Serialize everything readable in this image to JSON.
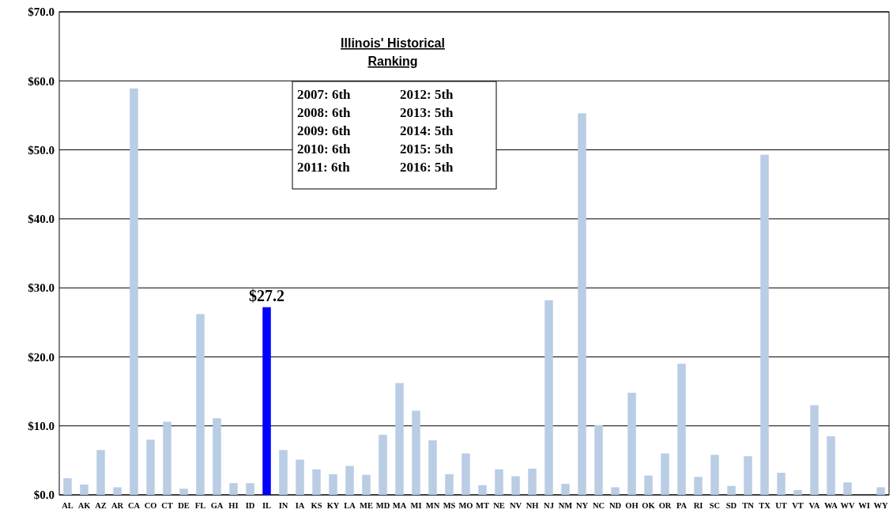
{
  "chart_data": {
    "type": "bar",
    "categories": [
      "AL",
      "AK",
      "AZ",
      "AR",
      "CA",
      "CO",
      "CT",
      "DE",
      "FL",
      "GA",
      "HI",
      "ID",
      "IL",
      "IN",
      "IA",
      "KS",
      "KY",
      "LA",
      "ME",
      "MD",
      "MA",
      "MI",
      "MN",
      "MS",
      "MO",
      "MT",
      "NE",
      "NV",
      "NH",
      "NJ",
      "NM",
      "NY",
      "NC",
      "ND",
      "OH",
      "OK",
      "OR",
      "PA",
      "RI",
      "SC",
      "SD",
      "TN",
      "TX",
      "UT",
      "VT",
      "VA",
      "WA",
      "WV",
      "WI",
      "WY"
    ],
    "values": [
      2.4,
      1.5,
      6.5,
      1.1,
      58.9,
      8.0,
      10.6,
      0.9,
      26.2,
      11.1,
      1.7,
      1.7,
      27.2,
      6.5,
      5.1,
      3.7,
      3.0,
      4.2,
      2.9,
      8.7,
      16.2,
      12.2,
      7.9,
      3.0,
      6.0,
      1.4,
      3.7,
      2.7,
      3.8,
      28.2,
      1.6,
      55.3,
      10.1,
      1.1,
      14.8,
      2.8,
      6.0,
      19.0,
      2.6,
      5.8,
      1.3,
      5.6,
      49.3,
      3.2,
      0.7,
      13.0,
      8.5,
      1.8,
      0,
      1.1
    ],
    "colors": [
      "#b9cde5",
      "#b9cde5",
      "#b9cde5",
      "#b9cde5",
      "#b9cde5",
      "#b9cde5",
      "#b9cde5",
      "#b9cde5",
      "#b9cde5",
      "#b9cde5",
      "#b9cde5",
      "#b9cde5",
      "#0000ff",
      "#b9cde5",
      "#b9cde5",
      "#b9cde5",
      "#b9cde5",
      "#b9cde5",
      "#b9cde5",
      "#b9cde5",
      "#b9cde5",
      "#b9cde5",
      "#b9cde5",
      "#b9cde5",
      "#b9cde5",
      "#b9cde5",
      "#b9cde5",
      "#b9cde5",
      "#b9cde5",
      "#b9cde5",
      "#b9cde5",
      "#b9cde5",
      "#b9cde5",
      "#b9cde5",
      "#b9cde5",
      "#b9cde5",
      "#b9cde5",
      "#b9cde5",
      "#b9cde5",
      "#b9cde5",
      "#b9cde5",
      "#b9cde5",
      "#b9cde5",
      "#b9cde5",
      "#b9cde5",
      "#b9cde5",
      "#b9cde5",
      "#b9cde5",
      "#b9cde5",
      "#b9cde5"
    ],
    "value_labels": [
      null,
      null,
      null,
      null,
      null,
      null,
      null,
      null,
      null,
      null,
      null,
      null,
      "$27.2",
      null,
      null,
      null,
      null,
      null,
      null,
      null,
      null,
      null,
      null,
      null,
      null,
      null,
      null,
      null,
      null,
      null,
      null,
      null,
      null,
      null,
      null,
      null,
      null,
      null,
      null,
      null,
      null,
      null,
      null,
      null,
      null,
      null,
      null,
      null,
      null,
      null
    ],
    "ylim": [
      0,
      70
    ],
    "yticks": [
      {
        "value": 0,
        "label": "$0.0"
      },
      {
        "value": 10,
        "label": "$10.0"
      },
      {
        "value": 20,
        "label": "$20.0"
      },
      {
        "value": 30,
        "label": "$30.0"
      },
      {
        "value": 40,
        "label": "$40.0"
      },
      {
        "value": 50,
        "label": "$50.0"
      },
      {
        "value": 60,
        "label": "$60.0"
      },
      {
        "value": 70,
        "label": "$70.0"
      }
    ],
    "grid": "y",
    "annotations": [
      "Illinois' Historical Ranking",
      "2007: 6th",
      "2008: 6th",
      "2009: 6th",
      "2010: 6th",
      "2011: 6th",
      "2012: 5th",
      "2013: 5th",
      "2014: 5th",
      "2015: 5th",
      "2016: 5th"
    ]
  }
}
